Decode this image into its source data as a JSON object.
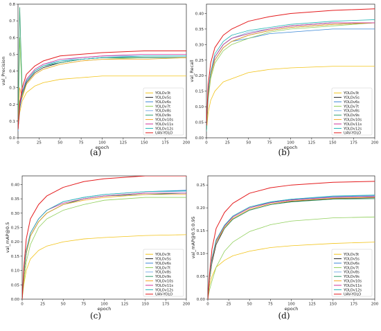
{
  "captions": [
    "(a)",
    "(b)",
    "(c)",
    "(d)"
  ],
  "series_styles": [
    {
      "name": "YOLOv3t",
      "color": "#f2c318"
    },
    {
      "name": "YOLOv5s",
      "color": "#222222"
    },
    {
      "name": "YOLOv6s",
      "color": "#3a86d6"
    },
    {
      "name": "YOLOv7t",
      "color": "#8fcf5a"
    },
    {
      "name": "YOLOv8s",
      "color": "#7fb0e8"
    },
    {
      "name": "YOLOv9s",
      "color": "#2f9e6e"
    },
    {
      "name": "YOLOv10s",
      "color": "#f5a623"
    },
    {
      "name": "YOLOv11s",
      "color": "#cc3399"
    },
    {
      "name": "YOLOv12s",
      "color": "#21b5b5"
    },
    {
      "name": "UAV-YOLO",
      "color": "#e41a1c"
    }
  ],
  "chart_data": [
    {
      "type": "line",
      "ylabel": "val_Precision",
      "xlabel": "epoch",
      "xlim": [
        0,
        200
      ],
      "ylim": [
        0,
        0.8
      ],
      "xticks": [
        0,
        25,
        50,
        75,
        100,
        125,
        150,
        175,
        200
      ],
      "yticks": [
        "0.0",
        "0.1",
        "0.2",
        "0.3",
        "0.4",
        "0.5",
        "0.6",
        "0.7",
        "0.8"
      ],
      "legend": "bottom-right",
      "x": [
        0,
        2,
        5,
        10,
        20,
        30,
        50,
        75,
        100,
        150,
        200
      ],
      "series": [
        {
          "name": "YOLOv3t",
          "values": [
            0.05,
            0.15,
            0.22,
            0.27,
            0.31,
            0.33,
            0.35,
            0.36,
            0.37,
            0.37,
            0.37
          ]
        },
        {
          "name": "YOLOv5s",
          "values": [
            0.05,
            0.18,
            0.25,
            0.33,
            0.39,
            0.42,
            0.45,
            0.47,
            0.48,
            0.48,
            0.48
          ]
        },
        {
          "name": "YOLOv6s",
          "values": [
            0.04,
            0.17,
            0.26,
            0.34,
            0.4,
            0.43,
            0.45,
            0.47,
            0.48,
            0.48,
            0.48
          ]
        },
        {
          "name": "YOLOv7t",
          "values": [
            0.05,
            0.6,
            0.25,
            0.32,
            0.38,
            0.41,
            0.44,
            0.46,
            0.47,
            0.48,
            0.48
          ]
        },
        {
          "name": "YOLOv8s",
          "values": [
            0.05,
            0.2,
            0.28,
            0.35,
            0.41,
            0.44,
            0.46,
            0.48,
            0.49,
            0.49,
            0.49
          ]
        },
        {
          "name": "YOLOv9s",
          "values": [
            0.05,
            0.78,
            0.27,
            0.34,
            0.4,
            0.43,
            0.45,
            0.47,
            0.48,
            0.48,
            0.48
          ]
        },
        {
          "name": "YOLOv10s",
          "values": [
            0.05,
            0.3,
            0.24,
            0.32,
            0.38,
            0.41,
            0.44,
            0.46,
            0.47,
            0.47,
            0.48
          ]
        },
        {
          "name": "YOLOv11s",
          "values": [
            0.05,
            0.2,
            0.27,
            0.35,
            0.41,
            0.44,
            0.47,
            0.48,
            0.49,
            0.5,
            0.5
          ]
        },
        {
          "name": "YOLOv12s",
          "values": [
            0.05,
            0.22,
            0.26,
            0.34,
            0.4,
            0.43,
            0.46,
            0.47,
            0.48,
            0.49,
            0.49
          ]
        },
        {
          "name": "UAV-YOLO",
          "values": [
            0.05,
            0.2,
            0.3,
            0.38,
            0.43,
            0.46,
            0.49,
            0.5,
            0.51,
            0.52,
            0.52
          ]
        }
      ]
    },
    {
      "type": "line",
      "ylabel": "val_Recall",
      "xlabel": "epoch",
      "xlim": [
        0,
        200
      ],
      "ylim": [
        0,
        0.43
      ],
      "xticks": [
        0,
        25,
        50,
        75,
        100,
        125,
        150,
        175,
        200
      ],
      "yticks": [
        "0.00",
        "0.05",
        "0.10",
        "0.15",
        "0.20",
        "0.25",
        "0.30",
        "0.35",
        "0.40"
      ],
      "legend": "bottom-right",
      "x": [
        0,
        2,
        5,
        10,
        20,
        30,
        50,
        75,
        100,
        150,
        200
      ],
      "series": [
        {
          "name": "YOLOv3t",
          "values": [
            0.02,
            0.08,
            0.12,
            0.15,
            0.18,
            0.19,
            0.21,
            0.22,
            0.225,
            0.23,
            0.23
          ]
        },
        {
          "name": "YOLOv5s",
          "values": [
            0.03,
            0.14,
            0.2,
            0.25,
            0.29,
            0.31,
            0.33,
            0.345,
            0.355,
            0.365,
            0.37
          ]
        },
        {
          "name": "YOLOv6s",
          "values": [
            0.02,
            0.13,
            0.2,
            0.25,
            0.29,
            0.31,
            0.32,
            0.335,
            0.34,
            0.35,
            0.35
          ]
        },
        {
          "name": "YOLOv7t",
          "values": [
            0.02,
            0.12,
            0.19,
            0.24,
            0.28,
            0.3,
            0.32,
            0.34,
            0.35,
            0.36,
            0.37
          ]
        },
        {
          "name": "YOLOv8s",
          "values": [
            0.03,
            0.15,
            0.21,
            0.26,
            0.3,
            0.32,
            0.34,
            0.35,
            0.36,
            0.37,
            0.37
          ]
        },
        {
          "name": "YOLOv9s",
          "values": [
            0.02,
            0.14,
            0.21,
            0.26,
            0.3,
            0.32,
            0.335,
            0.35,
            0.36,
            0.37,
            0.37
          ]
        },
        {
          "name": "YOLOv10s",
          "values": [
            0.02,
            0.13,
            0.2,
            0.25,
            0.29,
            0.31,
            0.33,
            0.345,
            0.355,
            0.365,
            0.37
          ]
        },
        {
          "name": "YOLOv11s",
          "values": [
            0.03,
            0.14,
            0.21,
            0.26,
            0.3,
            0.32,
            0.335,
            0.35,
            0.36,
            0.37,
            0.37
          ]
        },
        {
          "name": "YOLOv12s",
          "values": [
            0.02,
            0.14,
            0.21,
            0.27,
            0.31,
            0.33,
            0.345,
            0.355,
            0.365,
            0.375,
            0.38
          ]
        },
        {
          "name": "UAV-YOLO",
          "values": [
            0.04,
            0.17,
            0.24,
            0.29,
            0.33,
            0.35,
            0.375,
            0.39,
            0.4,
            0.41,
            0.415
          ]
        }
      ]
    },
    {
      "type": "line",
      "ylabel": "val_mAP@0.5",
      "xlabel": "epoch",
      "xlim": [
        0,
        200
      ],
      "ylim": [
        0,
        0.43
      ],
      "xticks": [
        0,
        25,
        50,
        75,
        100,
        125,
        150,
        175,
        200
      ],
      "yticks": [
        "0.00",
        "0.05",
        "0.10",
        "0.15",
        "0.20",
        "0.25",
        "0.30",
        "0.35",
        "0.40"
      ],
      "legend": "bottom-right",
      "x": [
        0,
        2,
        5,
        10,
        20,
        30,
        50,
        75,
        100,
        150,
        200
      ],
      "series": [
        {
          "name": "YOLOv3t",
          "values": [
            0.0,
            0.05,
            0.1,
            0.14,
            0.17,
            0.185,
            0.2,
            0.21,
            0.215,
            0.222,
            0.225
          ]
        },
        {
          "name": "YOLOv5s",
          "values": [
            0.0,
            0.08,
            0.16,
            0.22,
            0.27,
            0.3,
            0.33,
            0.35,
            0.36,
            0.37,
            0.37
          ]
        },
        {
          "name": "YOLOv6s",
          "values": [
            0.0,
            0.09,
            0.17,
            0.23,
            0.28,
            0.31,
            0.34,
            0.355,
            0.365,
            0.375,
            0.38
          ]
        },
        {
          "name": "YOLOv7t",
          "values": [
            0.0,
            0.06,
            0.13,
            0.19,
            0.25,
            0.28,
            0.31,
            0.33,
            0.345,
            0.355,
            0.355
          ]
        },
        {
          "name": "YOLOv8s",
          "values": [
            0.0,
            0.09,
            0.17,
            0.23,
            0.28,
            0.31,
            0.34,
            0.355,
            0.365,
            0.375,
            0.375
          ]
        },
        {
          "name": "YOLOv9s",
          "values": [
            0.0,
            0.08,
            0.16,
            0.22,
            0.27,
            0.3,
            0.33,
            0.35,
            0.36,
            0.365,
            0.37
          ]
        },
        {
          "name": "YOLOv10s",
          "values": [
            0.0,
            0.08,
            0.16,
            0.22,
            0.27,
            0.3,
            0.33,
            0.345,
            0.355,
            0.365,
            0.365
          ]
        },
        {
          "name": "YOLOv11s",
          "values": [
            0.0,
            0.09,
            0.17,
            0.23,
            0.28,
            0.31,
            0.335,
            0.35,
            0.36,
            0.37,
            0.37
          ]
        },
        {
          "name": "YOLOv12s",
          "values": [
            0.0,
            0.09,
            0.17,
            0.23,
            0.28,
            0.31,
            0.34,
            0.355,
            0.365,
            0.375,
            0.378
          ]
        },
        {
          "name": "UAV-YOLO",
          "values": [
            0.0,
            0.11,
            0.21,
            0.28,
            0.33,
            0.36,
            0.39,
            0.41,
            0.42,
            0.43,
            0.43
          ]
        }
      ]
    },
    {
      "type": "line",
      "ylabel": "val_mAP@0.5:0.95",
      "xlabel": "epoch",
      "xlim": [
        0,
        200
      ],
      "ylim": [
        0,
        0.27
      ],
      "xticks": [
        0,
        25,
        50,
        75,
        100,
        125,
        150,
        175,
        200
      ],
      "yticks": [
        "0.00",
        "0.05",
        "0.10",
        "0.15",
        "0.20",
        "0.25"
      ],
      "legend": "bottom-right",
      "x": [
        0,
        2,
        5,
        10,
        20,
        30,
        50,
        75,
        100,
        150,
        200
      ],
      "series": [
        {
          "name": "YOLOv3t",
          "values": [
            0.0,
            0.03,
            0.05,
            0.07,
            0.085,
            0.095,
            0.105,
            0.113,
            0.117,
            0.122,
            0.125
          ]
        },
        {
          "name": "YOLOv5s",
          "values": [
            0.0,
            0.04,
            0.08,
            0.12,
            0.155,
            0.175,
            0.195,
            0.207,
            0.214,
            0.22,
            0.222
          ]
        },
        {
          "name": "YOLOv6s",
          "values": [
            0.0,
            0.045,
            0.09,
            0.13,
            0.16,
            0.18,
            0.2,
            0.212,
            0.218,
            0.224,
            0.226
          ]
        },
        {
          "name": "YOLOv7t",
          "values": [
            0.0,
            0.02,
            0.04,
            0.07,
            0.105,
            0.125,
            0.148,
            0.163,
            0.171,
            0.178,
            0.18
          ]
        },
        {
          "name": "YOLOv8s",
          "values": [
            0.0,
            0.045,
            0.09,
            0.13,
            0.162,
            0.182,
            0.202,
            0.213,
            0.219,
            0.225,
            0.227
          ]
        },
        {
          "name": "YOLOv9s",
          "values": [
            0.0,
            0.04,
            0.085,
            0.125,
            0.155,
            0.175,
            0.195,
            0.207,
            0.213,
            0.219,
            0.22
          ]
        },
        {
          "name": "YOLOv10s",
          "values": [
            0.0,
            0.04,
            0.085,
            0.125,
            0.157,
            0.177,
            0.197,
            0.209,
            0.215,
            0.221,
            0.223
          ]
        },
        {
          "name": "YOLOv11s",
          "values": [
            0.0,
            0.045,
            0.088,
            0.128,
            0.16,
            0.18,
            0.2,
            0.211,
            0.217,
            0.223,
            0.225
          ]
        },
        {
          "name": "YOLOv12s",
          "values": [
            0.0,
            0.045,
            0.09,
            0.13,
            0.162,
            0.182,
            0.202,
            0.213,
            0.219,
            0.226,
            0.228
          ]
        },
        {
          "name": "UAV-YOLO",
          "values": [
            0.0,
            0.055,
            0.11,
            0.155,
            0.19,
            0.21,
            0.232,
            0.244,
            0.25,
            0.256,
            0.258
          ]
        }
      ]
    }
  ]
}
